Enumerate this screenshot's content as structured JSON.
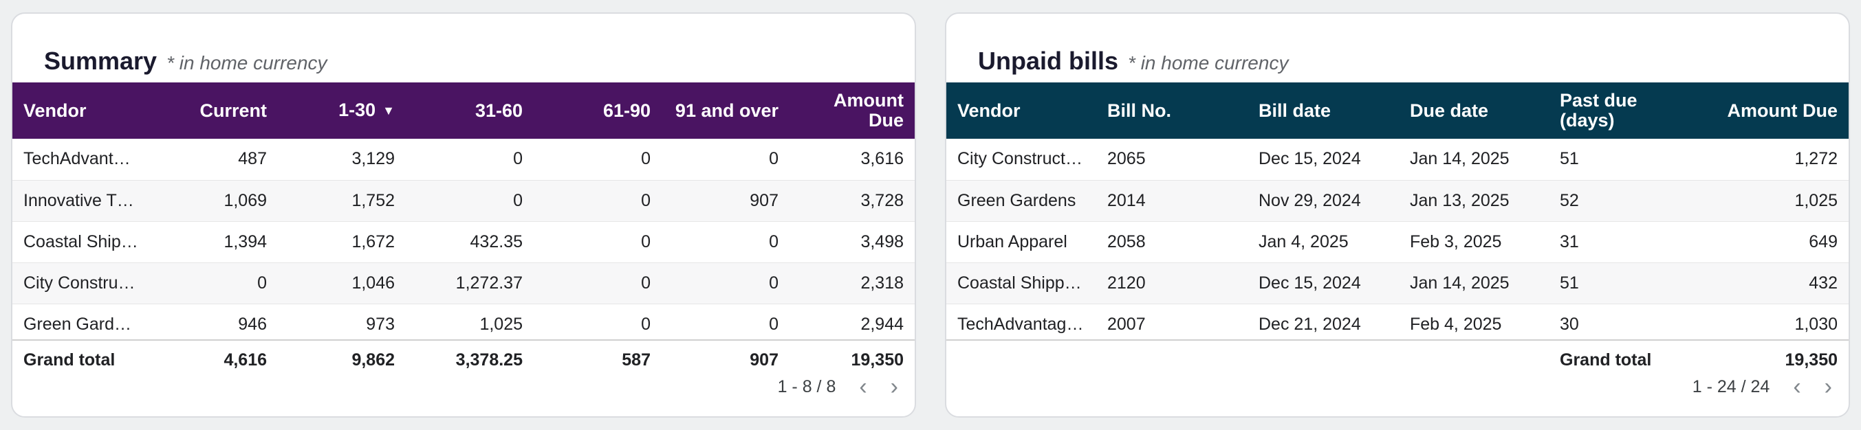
{
  "summary": {
    "title": "Summary",
    "note": "* in home currency",
    "header_color": "#4a1462",
    "columns": [
      "Vendor",
      "Current",
      "1-30",
      "31-60",
      "61-90",
      "91 and over",
      "Amount Due"
    ],
    "sorted_column_icon": "caret-down-icon",
    "rows": [
      [
        "TechAdvant…",
        "487",
        "3,129",
        "0",
        "0",
        "0",
        "3,616"
      ],
      [
        "Innovative T…",
        "1,069",
        "1,752",
        "0",
        "0",
        "907",
        "3,728"
      ],
      [
        "Coastal Ship…",
        "1,394",
        "1,672",
        "432.35",
        "0",
        "0",
        "3,498"
      ],
      [
        "City Constru…",
        "0",
        "1,046",
        "1,272.37",
        "0",
        "0",
        "2,318"
      ],
      [
        "Green Garde…",
        "946",
        "973",
        "1,025",
        "0",
        "0",
        "2,944"
      ]
    ],
    "total": [
      "Grand total",
      "4,616",
      "9,862",
      "3,378.25",
      "587",
      "907",
      "19,350"
    ],
    "pagination": "1 - 8 / 8"
  },
  "unpaid": {
    "title": "Unpaid bills",
    "note": "* in home currency",
    "header_color": "#053a50",
    "columns": [
      "Vendor",
      "Bill No.",
      "Bill date",
      "Due date",
      "Past due (days)",
      "Amount Due"
    ],
    "rows": [
      [
        "City Constructi…",
        "2065",
        "Dec 15, 2024",
        "Jan 14, 2025",
        "51",
        "1,272"
      ],
      [
        "Green Gardens",
        "2014",
        "Nov 29, 2024",
        "Jan 13, 2025",
        "52",
        "1,025"
      ],
      [
        "Urban Apparel",
        "2058",
        "Jan 4, 2025",
        "Feb 3, 2025",
        "31",
        "649"
      ],
      [
        "Coastal Shipping",
        "2120",
        "Dec 15, 2024",
        "Jan 14, 2025",
        "51",
        "432"
      ],
      [
        "TechAdvantag…",
        "2007",
        "Dec 21, 2024",
        "Feb 4, 2025",
        "30",
        "1,030"
      ]
    ],
    "total_label": "Grand total",
    "total_value": "19,350",
    "pagination": "1 - 24 / 24"
  },
  "icons": {
    "prev": "chevron-left-icon",
    "next": "chevron-right-icon"
  }
}
